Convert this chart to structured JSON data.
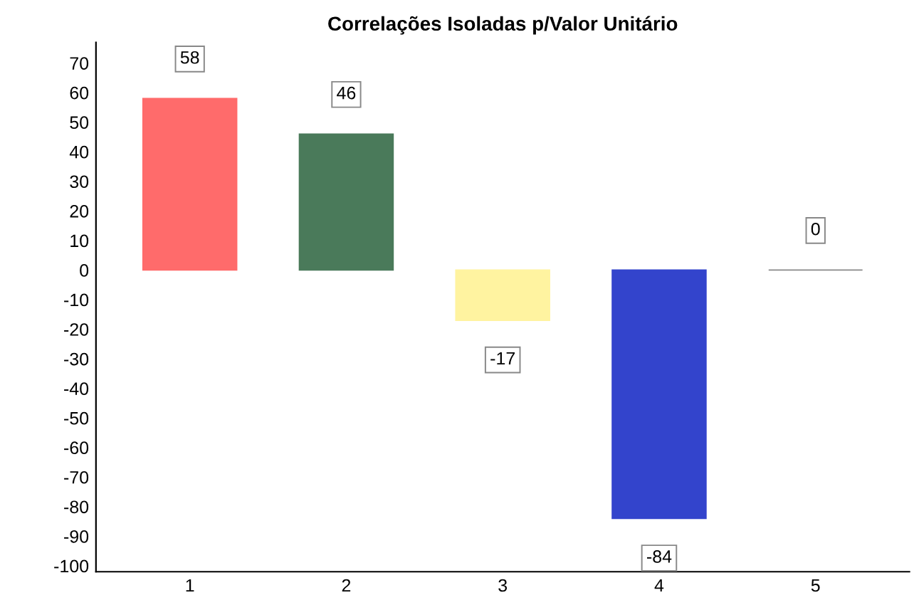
{
  "chart_data": {
    "type": "bar",
    "title": "Correlações Isoladas p/Valor Unitário",
    "categories": [
      "1",
      "2",
      "3",
      "4",
      "5"
    ],
    "values": [
      58,
      46,
      -17,
      -84,
      0
    ],
    "colors": [
      "#ff6b6b",
      "#4a7a5a",
      "#fff3a0",
      "#3344cc",
      "#888888"
    ],
    "ylim": [
      -102,
      77
    ],
    "yticks": [
      -100,
      -90,
      -80,
      -70,
      -60,
      -50,
      -40,
      -30,
      -20,
      -10,
      0,
      10,
      20,
      30,
      40,
      50,
      60,
      70
    ],
    "data_labels": true,
    "grid": false,
    "legend": false
  }
}
